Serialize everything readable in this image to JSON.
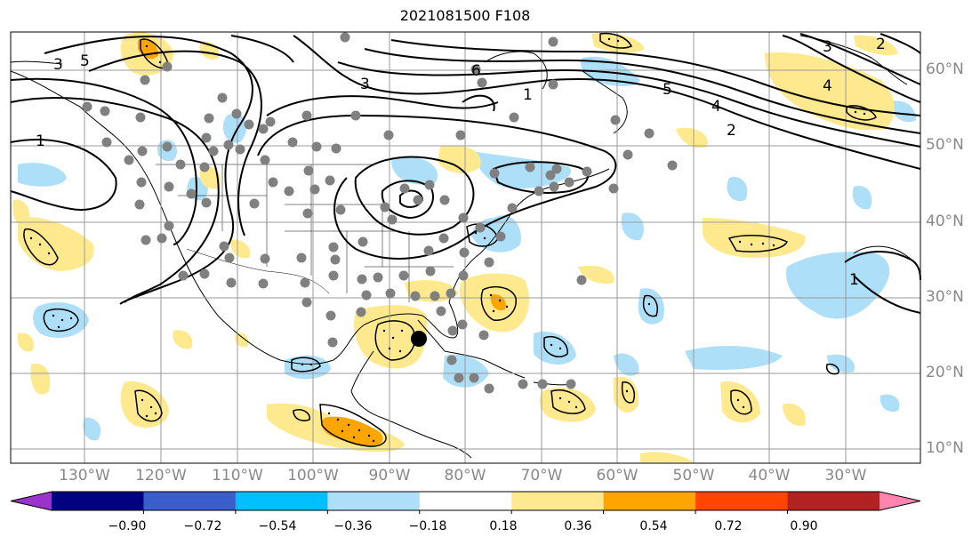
{
  "title": "2021081500 F108",
  "colors": {
    "light_blue": "#addff8",
    "light_yellow": "#ffe98e",
    "orange": "#ffa500",
    "contour": "#000000",
    "grid": "#9a9a9a",
    "dot": "#808080",
    "land_bg": "#ffffff"
  },
  "lat_labels": [
    "60°N",
    "50°N",
    "40°N",
    "30°N",
    "20°N",
    "10°N"
  ],
  "lon_labels": [
    "130°W",
    "120°W",
    "110°W",
    "100°W",
    "90°W",
    "80°W",
    "70°W",
    "60°W",
    "50°W",
    "40°W",
    "30°W"
  ],
  "contour_labels": [
    "1",
    "3",
    "5",
    "6",
    "1",
    "5",
    "4",
    "2",
    "3",
    "2",
    "4",
    "1",
    "3"
  ],
  "colorbar": {
    "colors": [
      "#9933cc",
      "#000080",
      "#3a5fcd",
      "#00bfff",
      "#addff8",
      "#ffffff",
      "#ffe98e",
      "#ffa500",
      "#ff4500",
      "#b22222",
      "#ff85b0"
    ],
    "tick_labels": [
      "−0.90",
      "−0.72",
      "−0.54",
      "−0.36",
      "−0.18",
      "0.18",
      "0.36",
      "0.54",
      "0.72",
      "0.90"
    ]
  }
}
